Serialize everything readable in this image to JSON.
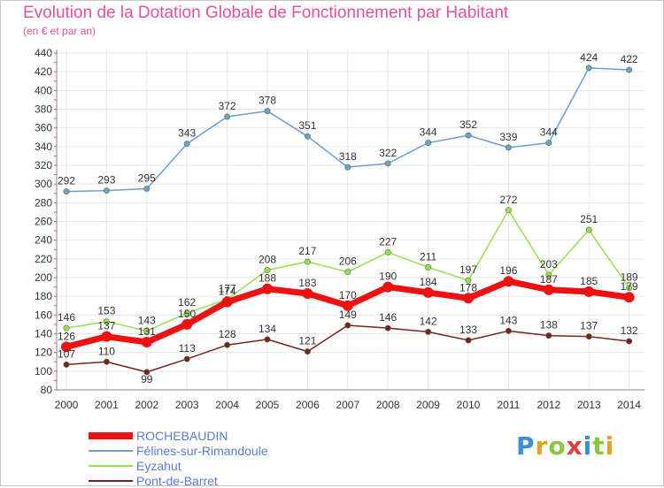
{
  "title": "Evolution de la Dotation Globale de Fonctionnement par Habitant",
  "subtitle": "(en € et par an)",
  "logo": {
    "text": "Proxiti",
    "letters": [
      "P",
      "r",
      "o",
      "x",
      "i",
      "t",
      "i"
    ],
    "colors": [
      "#3a8fd8",
      "#e8a020",
      "#8cc63f",
      "#e04040",
      "#3a8fd8",
      "#8cc63f",
      "#e8a020"
    ]
  },
  "chart_data": {
    "type": "line",
    "x": [
      "2000",
      "2001",
      "2002",
      "2003",
      "2004",
      "2005",
      "2006",
      "2007",
      "2008",
      "2009",
      "2010",
      "2011",
      "2012",
      "2013",
      "2014"
    ],
    "ylim": [
      80,
      440
    ],
    "yticks": [
      "80",
      "100",
      "120",
      "140",
      "160",
      "180",
      "200",
      "220",
      "240",
      "260",
      "280",
      "300",
      "320",
      "340",
      "360",
      "380",
      "400",
      "420",
      "440"
    ],
    "grid": true,
    "legend_position": "bottom-left",
    "series": [
      {
        "name": "ROCHEBAUDIN",
        "color": "#ee1111",
        "values": [
          126,
          137,
          131,
          150,
          174,
          188,
          183,
          170,
          190,
          184,
          178,
          196,
          187,
          185,
          179
        ],
        "labels": [
          "126",
          "137",
          "131",
          "150",
          "174",
          "188",
          "183",
          "170",
          "190",
          "184",
          "178",
          "196",
          "187",
          "185",
          "179"
        ]
      },
      {
        "name": "Félines-sur-Rimandoule",
        "color": "#6f9fd0",
        "values": [
          292,
          293,
          295,
          343,
          372,
          378,
          351,
          318,
          322,
          344,
          352,
          339,
          344,
          424,
          422
        ],
        "labels": [
          "292",
          "293",
          "295",
          "343",
          "372",
          "378",
          "351",
          "318",
          "322",
          "344",
          "352",
          "339",
          "344",
          "424",
          "422"
        ]
      },
      {
        "name": "Eyzahut",
        "color": "#99dd55",
        "values": [
          146,
          153,
          143,
          162,
          177,
          208,
          217,
          206,
          227,
          211,
          197,
          272,
          203,
          251,
          189
        ],
        "labels": [
          "146",
          "153",
          "143",
          "162",
          "177",
          "208",
          "217",
          "206",
          "227",
          "211",
          "197",
          "272",
          "203",
          "251",
          "189"
        ]
      },
      {
        "name": "Pont-de-Barret",
        "color": "#772222",
        "values": [
          107,
          110,
          99,
          113,
          128,
          134,
          121,
          149,
          146,
          142,
          133,
          143,
          138,
          137,
          132
        ],
        "labels": [
          "107",
          "110",
          "99",
          "113",
          "128",
          "134",
          "121",
          "149",
          "146",
          "142",
          "133",
          "143",
          "138",
          "137",
          "132"
        ]
      }
    ]
  }
}
